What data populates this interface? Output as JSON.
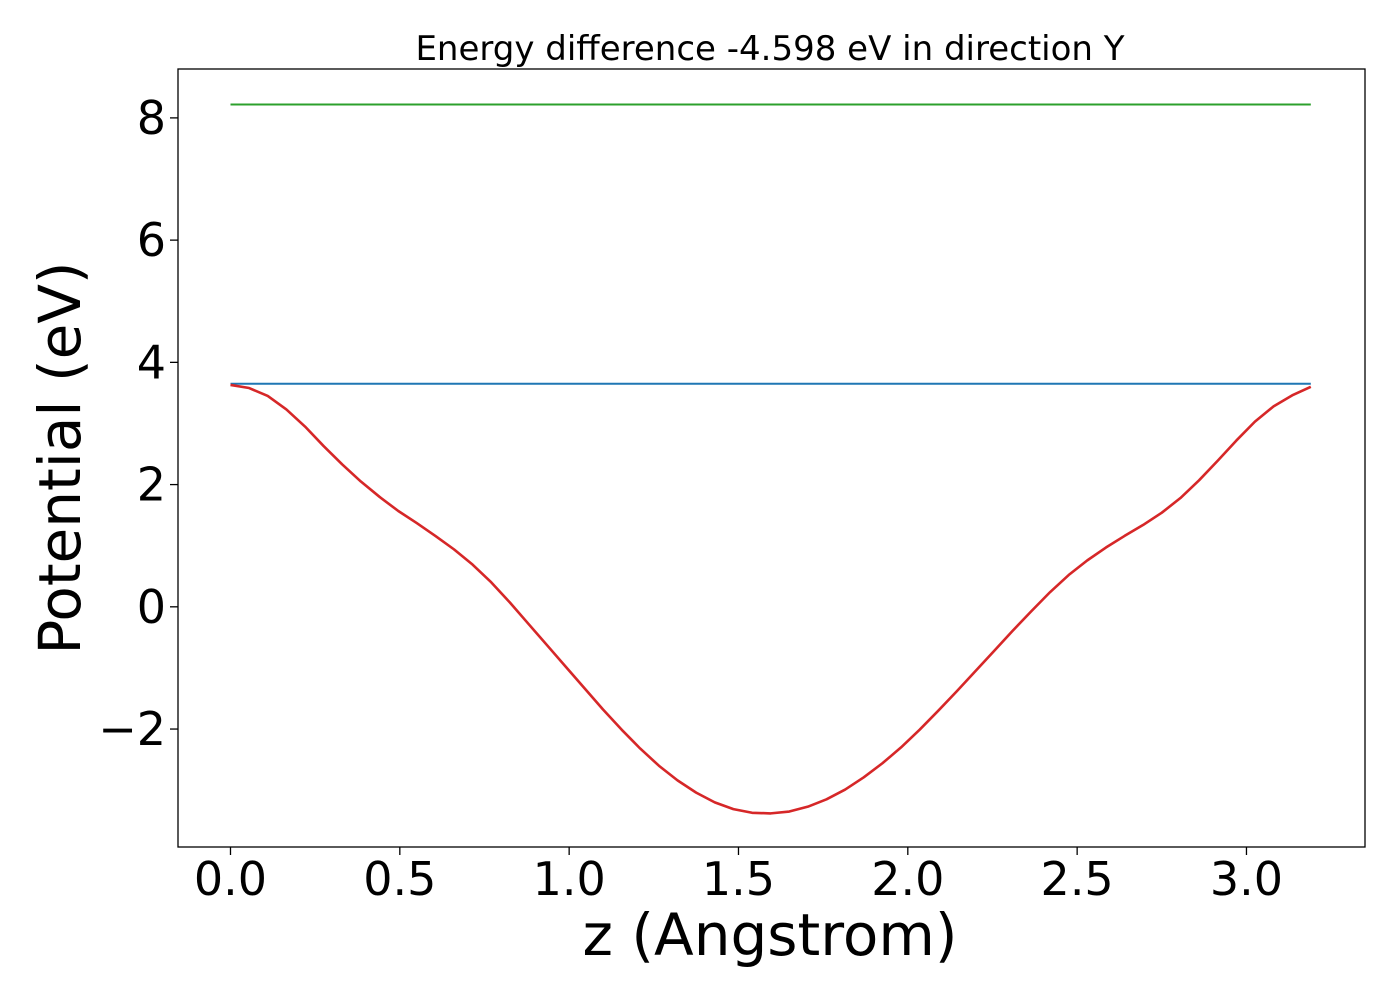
{
  "chart_data": {
    "type": "line",
    "title": "Energy difference -4.598 eV in direction Y",
    "xlabel": "z (Angstrom)",
    "ylabel": "Potential (eV)",
    "xlim": [
      -0.155,
      3.35
    ],
    "ylim": [
      -3.93,
      8.8
    ],
    "xticks": [
      0.0,
      0.5,
      1.0,
      1.5,
      2.0,
      2.5,
      3.0
    ],
    "xtick_labels": [
      "0.0",
      "0.5",
      "1.0",
      "1.5",
      "2.0",
      "2.5",
      "3.0"
    ],
    "yticks": [
      -2,
      0,
      2,
      4,
      6,
      8
    ],
    "ytick_labels": [
      "−2",
      "0",
      "2",
      "4",
      "6",
      "8"
    ],
    "grid": false,
    "series": [
      {
        "color": "#2ca02c",
        "x": [
          0.0,
          3.19
        ],
        "y": [
          8.22,
          8.22
        ]
      },
      {
        "color": "#1f77b4",
        "x": [
          0.0,
          3.19
        ],
        "y": [
          3.65,
          3.65
        ]
      },
      {
        "color": "#d62728",
        "x": [
          0.0,
          0.055,
          0.11,
          0.165,
          0.22,
          0.275,
          0.33,
          0.385,
          0.44,
          0.495,
          0.55,
          0.605,
          0.66,
          0.715,
          0.77,
          0.825,
          0.88,
          0.935,
          0.99,
          1.045,
          1.1,
          1.155,
          1.21,
          1.265,
          1.32,
          1.375,
          1.43,
          1.485,
          1.54,
          1.595,
          1.65,
          1.705,
          1.76,
          1.815,
          1.87,
          1.925,
          1.98,
          2.035,
          2.09,
          2.145,
          2.2,
          2.255,
          2.31,
          2.365,
          2.42,
          2.475,
          2.53,
          2.585,
          2.64,
          2.695,
          2.75,
          2.805,
          2.86,
          2.915,
          2.97,
          3.025,
          3.08,
          3.135,
          3.19
        ],
        "y": [
          3.63,
          3.58,
          3.45,
          3.23,
          2.95,
          2.63,
          2.33,
          2.05,
          1.8,
          1.57,
          1.37,
          1.16,
          0.94,
          0.69,
          0.4,
          0.07,
          -0.28,
          -0.63,
          -0.98,
          -1.33,
          -1.68,
          -2.01,
          -2.32,
          -2.6,
          -2.84,
          -3.04,
          -3.2,
          -3.31,
          -3.37,
          -3.38,
          -3.35,
          -3.27,
          -3.15,
          -2.99,
          -2.79,
          -2.56,
          -2.3,
          -2.01,
          -1.7,
          -1.38,
          -1.05,
          -0.72,
          -0.39,
          -0.07,
          0.24,
          0.52,
          0.76,
          0.97,
          1.16,
          1.34,
          1.54,
          1.78,
          2.07,
          2.39,
          2.72,
          3.03,
          3.28,
          3.46,
          3.6
        ]
      }
    ]
  }
}
